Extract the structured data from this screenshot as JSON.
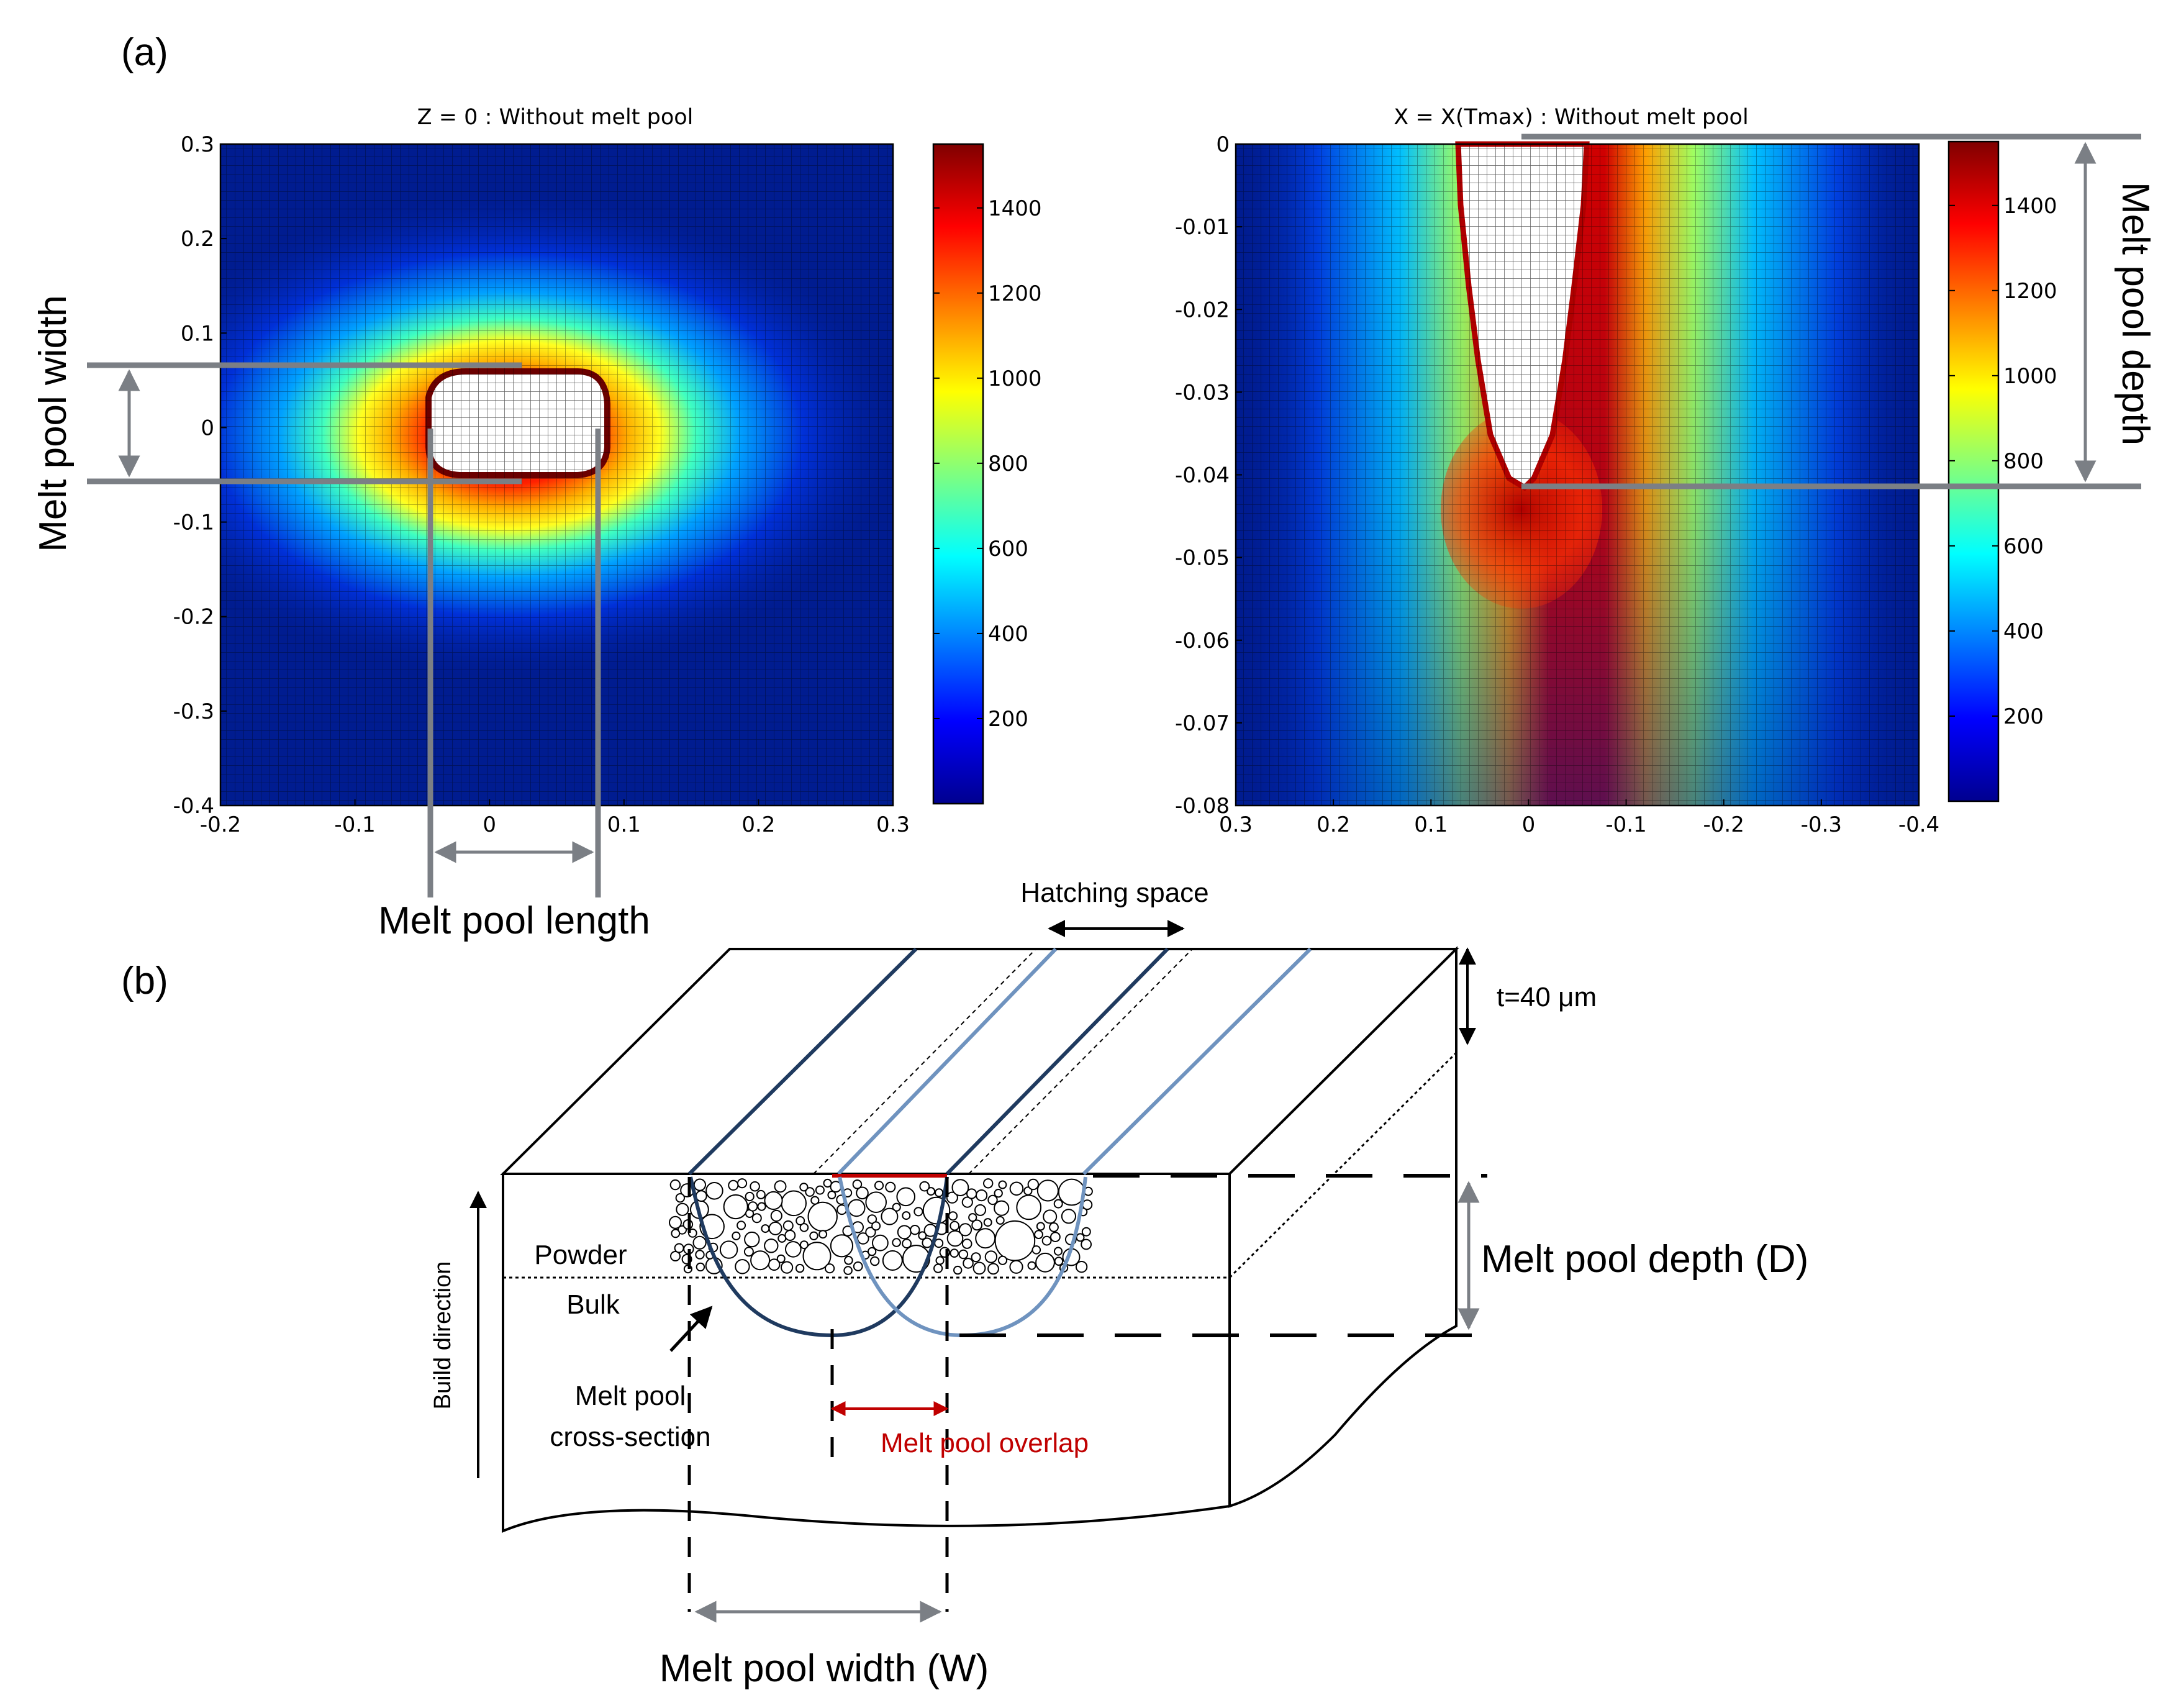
{
  "colors": {
    "annot": "#7b7f85",
    "overlap": "#c00000",
    "pool_dark": "#1f3a5f",
    "pool_light": "#6f93bf",
    "bg_field": "#001c90"
  },
  "panel_a": {
    "label": "(a)",
    "annot_width": "Melt pool width",
    "annot_length": "Melt pool length",
    "annot_depth": "Melt pool depth"
  },
  "panel_b": {
    "label": "(b)",
    "hatching": "Hatching space",
    "thickness": "t=40 μm",
    "depth": "Melt pool depth (D)",
    "width": "Melt pool width (W)",
    "powder": "Powder",
    "bulk": "Bulk",
    "build_direction": "Build direction",
    "cross_section_line1": "Melt pool",
    "cross_section_line2": "cross-section",
    "overlap": "Melt pool overlap"
  },
  "chart_data": [
    {
      "type": "heatmap",
      "title": "Z = 0 : Without melt pool",
      "xlim": [
        -0.2,
        0.3
      ],
      "ylim": [
        -0.4,
        0.3
      ],
      "xticks": [
        -0.2,
        -0.1,
        0,
        0.1,
        0.2,
        0.3
      ],
      "yticks": [
        0.3,
        0.2,
        0.1,
        0,
        -0.1,
        -0.2,
        -0.3,
        -0.4
      ],
      "xtick_labels": [
        "-0.2",
        "-0.1",
        "0",
        "0.1",
        "0.2",
        "0.3"
      ],
      "ytick_labels": [
        "0.3",
        "0.2",
        "0.1",
        "0",
        "-0.1",
        "-0.2",
        "-0.3",
        "-0.4"
      ],
      "melt_region": {
        "x_center": 0.015,
        "y_center": 0.005,
        "length": 0.13,
        "width": 0.125
      },
      "colorbar": {
        "min": 0,
        "max": 1550,
        "ticks": [
          1400,
          1200,
          1000,
          800,
          600,
          400,
          200
        ],
        "tick_labels": [
          "1400",
          "1200",
          "1000",
          "800",
          "600",
          "400",
          "200"
        ]
      }
    },
    {
      "type": "heatmap",
      "title": "X = X(Tmax) : Without melt pool",
      "xlim": [
        0.3,
        -0.4
      ],
      "ylim": [
        -0.08,
        0
      ],
      "xticks": [
        0.3,
        0.2,
        0.1,
        0,
        -0.1,
        -0.2,
        -0.3,
        -0.4
      ],
      "yticks": [
        0,
        -0.01,
        -0.02,
        -0.03,
        -0.04,
        -0.05,
        -0.06,
        -0.07,
        -0.08
      ],
      "xtick_labels": [
        "0.3",
        "0.2",
        "0.1",
        "0",
        "-0.1",
        "-0.2",
        "-0.3",
        "-0.4"
      ],
      "ytick_labels": [
        "0",
        "-0.01",
        "-0.02",
        "-0.03",
        "-0.04",
        "-0.05",
        "-0.06",
        "-0.07",
        "-0.08"
      ],
      "melt_region": {
        "top_half_width": 0.06,
        "depth": 0.041
      },
      "colorbar": {
        "min": 0,
        "max": 1550,
        "ticks": [
          1400,
          1200,
          1000,
          800,
          600,
          400,
          200
        ],
        "tick_labels": [
          "1400",
          "1200",
          "1000",
          "800",
          "600",
          "400",
          "200"
        ]
      }
    }
  ]
}
